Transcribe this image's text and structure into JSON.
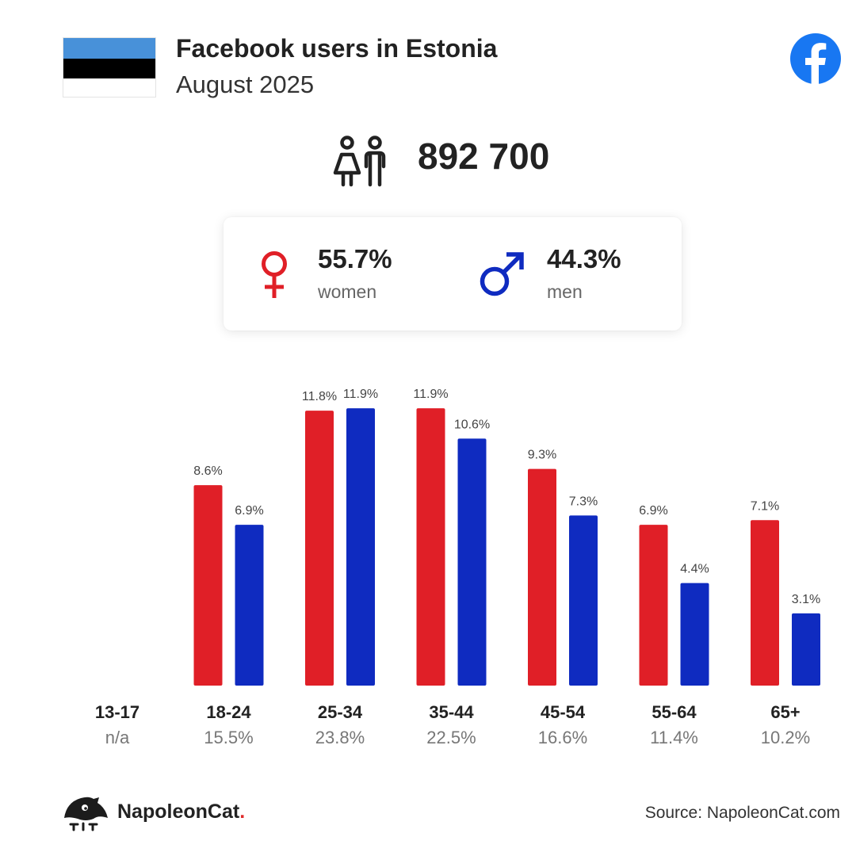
{
  "header": {
    "title": "Facebook users in Estonia",
    "subtitle": "August 2025",
    "flag_colors": [
      "#4891d9",
      "#000000",
      "#ffffff"
    ],
    "platform_icon": "facebook-logo-icon",
    "platform_color": "#1877f2"
  },
  "total": {
    "icon": "people-icon",
    "value": "892 700"
  },
  "gender": {
    "women": {
      "icon": "female-symbol-icon",
      "pct": "55.7%",
      "label": "women",
      "color": "#e01f27"
    },
    "men": {
      "icon": "male-symbol-icon",
      "pct": "44.3%",
      "label": "men",
      "color": "#0f2bc0"
    }
  },
  "chart_data": {
    "type": "bar",
    "categories": [
      "13-17",
      "18-24",
      "25-34",
      "35-44",
      "45-54",
      "55-64",
      "65+"
    ],
    "category_shares": [
      "n/a",
      "15.5%",
      "23.8%",
      "22.5%",
      "16.6%",
      "11.4%",
      "10.2%"
    ],
    "series": [
      {
        "key": "women",
        "color": "#e01f27",
        "values": [
          null,
          8.6,
          11.8,
          11.9,
          9.3,
          6.9,
          7.1
        ]
      },
      {
        "key": "men",
        "color": "#0f2bc0",
        "values": [
          null,
          6.9,
          11.9,
          10.6,
          7.3,
          4.4,
          3.1
        ]
      }
    ],
    "value_suffix": "%",
    "ylim": [
      0,
      12
    ],
    "grid": false
  },
  "footer": {
    "brand_name": "NapoleonCat",
    "brand_dot": ".",
    "brand_icon": "napoleoncat-logo-icon",
    "source": "Source: NapoleonCat.com"
  }
}
